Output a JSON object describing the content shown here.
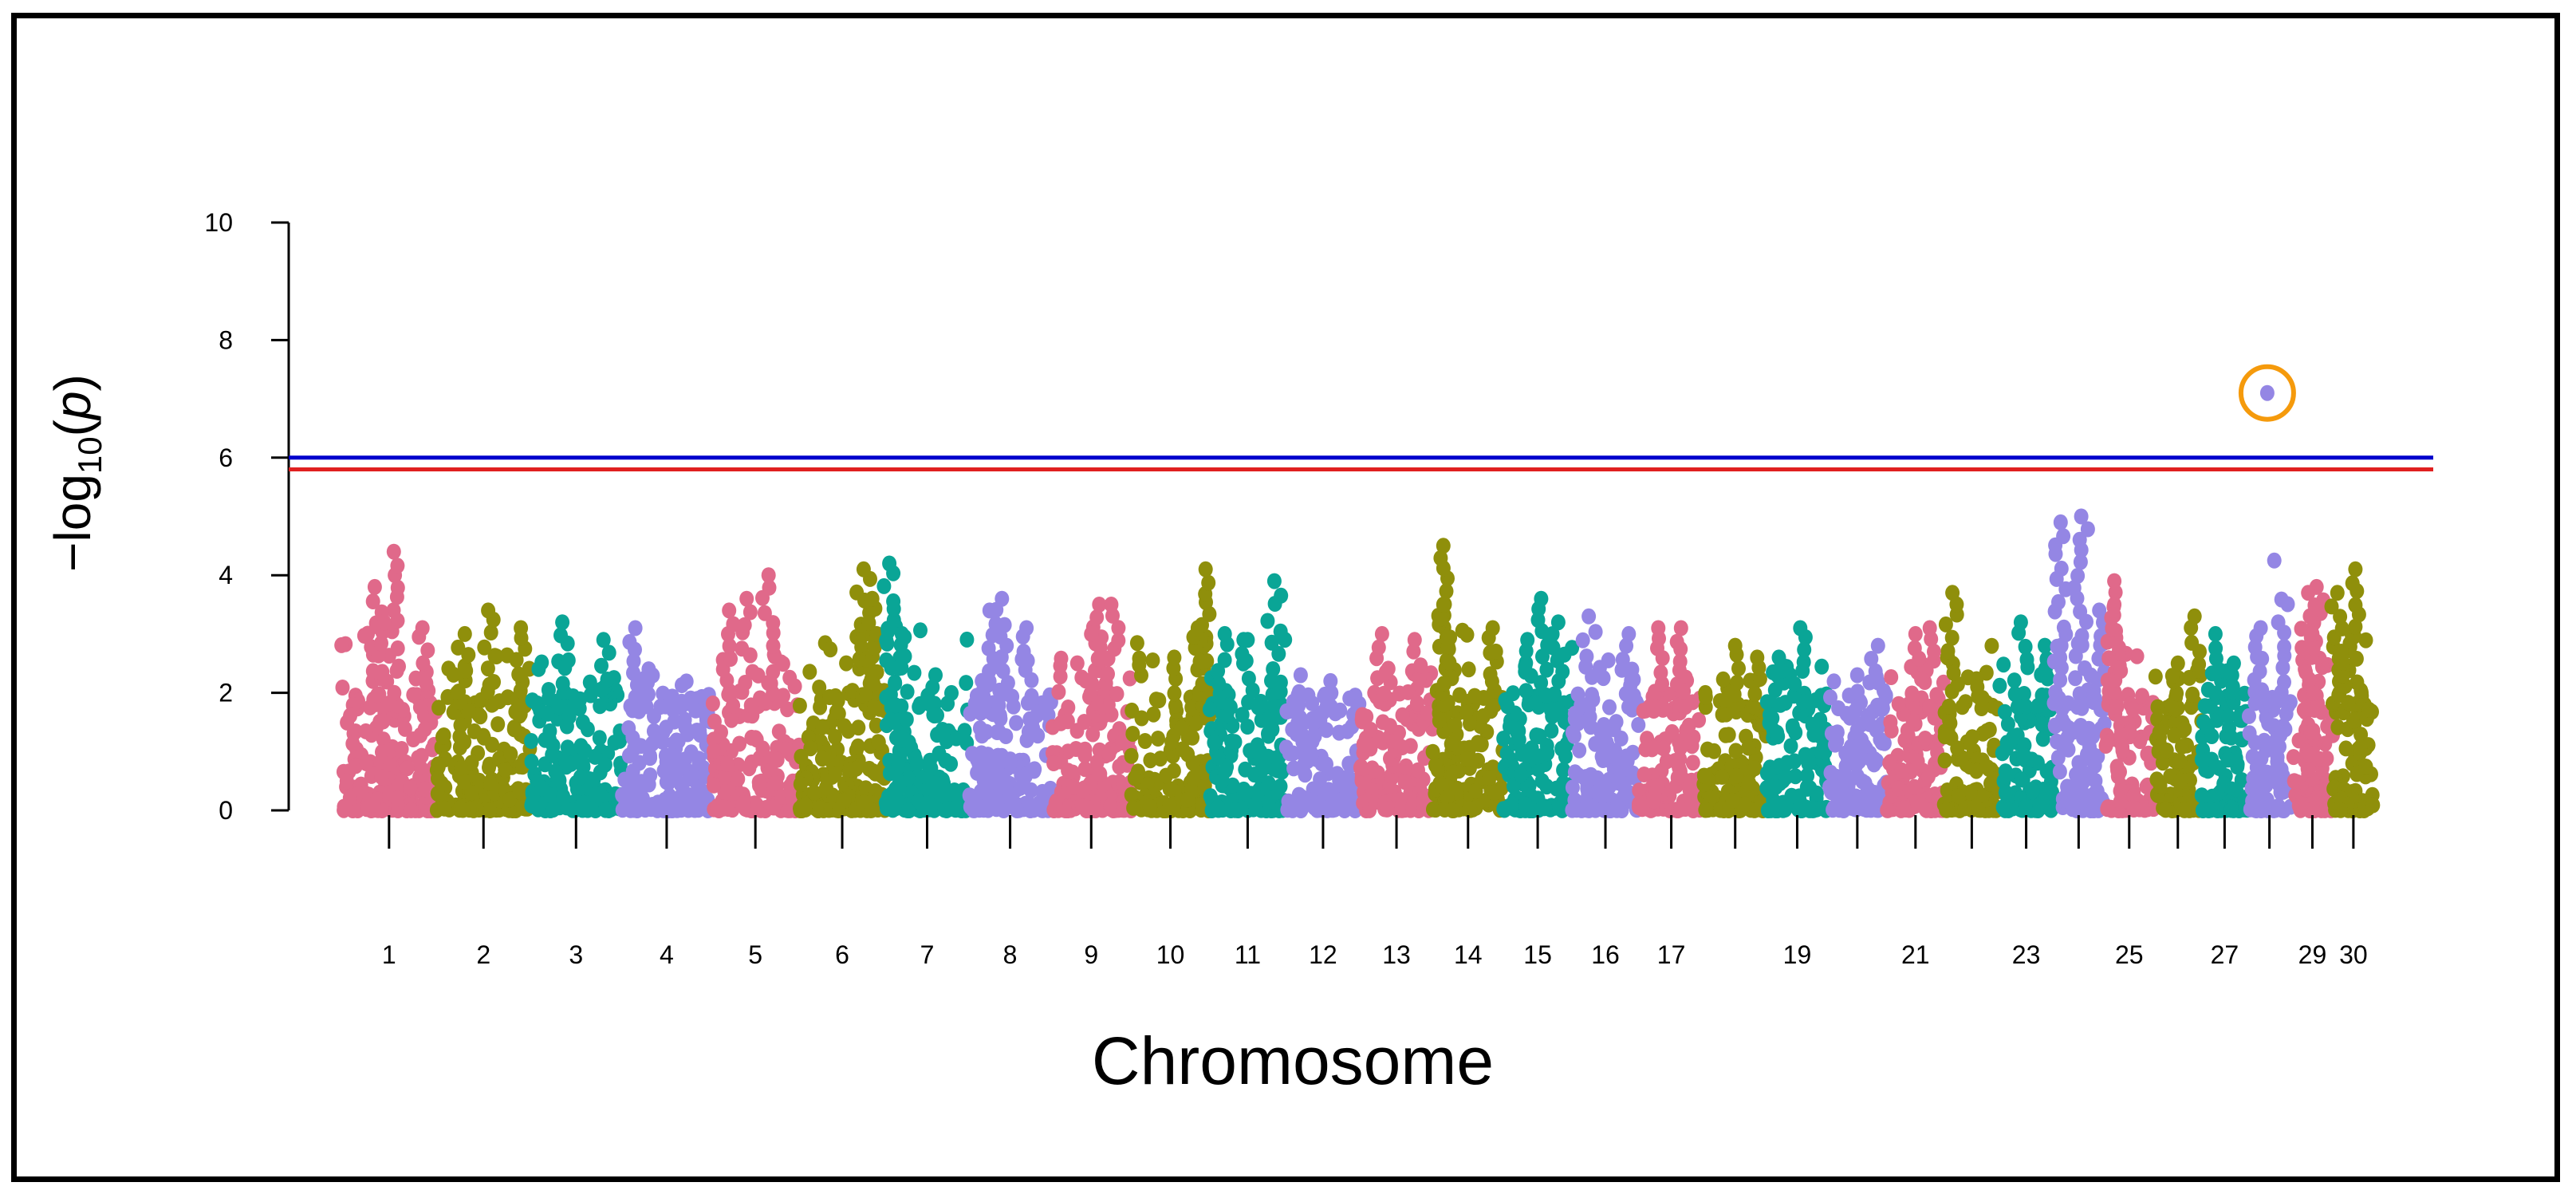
{
  "chart_data": {
    "type": "scatter",
    "subtype": "manhattan",
    "title": "",
    "xlabel": "Chromosome",
    "ylabel": {
      "prefix": "−log",
      "subscript": "10",
      "open": "(",
      "var": "p",
      "close": ")"
    },
    "ylim": [
      0,
      10
    ],
    "yticks": [
      0,
      2,
      4,
      6,
      8,
      10
    ],
    "palette": [
      "#e0698a",
      "#8f8f0b",
      "#0aa596",
      "#9486e4"
    ],
    "thresholds": [
      {
        "name": "genome-wide-significance",
        "value": 6.0,
        "color": "#0000cc"
      },
      {
        "name": "suggestive",
        "value": 5.8,
        "color": "#e02020"
      }
    ],
    "chromosomes": [
      {
        "chr": "1",
        "label": "1",
        "max": 4.4,
        "peaks": [
          [
            0.55,
            4.4
          ],
          [
            0.35,
            3.8
          ],
          [
            0.45,
            3.2
          ],
          [
            0.85,
            3.1
          ]
        ]
      },
      {
        "chr": "2",
        "label": "2",
        "max": 3.4,
        "peaks": [
          [
            0.55,
            3.4
          ],
          [
            0.9,
            3.1
          ],
          [
            0.3,
            3.0
          ]
        ]
      },
      {
        "chr": "3",
        "label": "3",
        "max": 3.2,
        "peaks": [
          [
            0.35,
            3.2
          ],
          [
            0.8,
            2.9
          ]
        ]
      },
      {
        "chr": "4",
        "label": "4",
        "max": 3.1,
        "peaks": [
          [
            0.15,
            3.1
          ],
          [
            0.3,
            2.4
          ]
        ]
      },
      {
        "chr": "5",
        "label": "5",
        "max": 4.0,
        "peaks": [
          [
            0.65,
            4.0
          ],
          [
            0.4,
            3.6
          ],
          [
            0.2,
            3.4
          ]
        ]
      },
      {
        "chr": "6",
        "label": "6",
        "max": 4.1,
        "peaks": [
          [
            0.75,
            4.1
          ],
          [
            0.85,
            3.6
          ],
          [
            0.9,
            3.0
          ]
        ]
      },
      {
        "chr": "7",
        "label": "7",
        "max": 4.2,
        "peaks": [
          [
            0.05,
            4.2
          ],
          [
            0.2,
            3.0
          ],
          [
            0.6,
            2.3
          ]
        ]
      },
      {
        "chr": "8",
        "label": "8",
        "max": 3.6,
        "peaks": [
          [
            0.4,
            3.6
          ],
          [
            0.25,
            3.4
          ],
          [
            0.7,
            3.1
          ]
        ]
      },
      {
        "chr": "9",
        "label": "9",
        "max": 3.5,
        "peaks": [
          [
            0.6,
            3.5
          ],
          [
            0.75,
            3.5
          ],
          [
            0.5,
            3.0
          ]
        ]
      },
      {
        "chr": "10",
        "label": "10",
        "max": 4.1,
        "peaks": [
          [
            0.95,
            4.1
          ],
          [
            0.85,
            3.1
          ],
          [
            0.55,
            2.6
          ]
        ]
      },
      {
        "chr": "11",
        "label": "11",
        "max": 3.9,
        "peaks": [
          [
            0.85,
            3.9
          ],
          [
            0.2,
            3.0
          ],
          [
            0.5,
            2.9
          ]
        ]
      },
      {
        "chr": "12",
        "label": "12",
        "max": 2.3,
        "peaks": [
          [
            0.2,
            2.3
          ],
          [
            0.6,
            2.2
          ]
        ]
      },
      {
        "chr": "13",
        "label": "13",
        "max": 3.0,
        "peaks": [
          [
            0.3,
            3.0
          ],
          [
            0.75,
            2.9
          ]
        ]
      },
      {
        "chr": "14",
        "label": "14",
        "max": 4.5,
        "peaks": [
          [
            0.15,
            4.5
          ],
          [
            0.15,
            3.5
          ],
          [
            0.85,
            3.1
          ]
        ]
      },
      {
        "chr": "15",
        "label": "15",
        "max": 3.6,
        "peaks": [
          [
            0.55,
            3.6
          ],
          [
            0.8,
            3.2
          ],
          [
            0.35,
            2.9
          ]
        ]
      },
      {
        "chr": "16",
        "label": "16",
        "max": 3.3,
        "peaks": [
          [
            0.25,
            3.3
          ],
          [
            0.85,
            3.0
          ]
        ]
      },
      {
        "chr": "17",
        "label": "17",
        "max": 3.1,
        "peaks": [
          [
            0.3,
            3.1
          ],
          [
            0.65,
            3.1
          ]
        ]
      },
      {
        "chr": "18",
        "label": "",
        "max": 2.8,
        "peaks": [
          [
            0.5,
            2.8
          ],
          [
            0.85,
            2.6
          ]
        ]
      },
      {
        "chr": "19",
        "label": "19",
        "max": 3.1,
        "peaks": [
          [
            0.55,
            3.1
          ],
          [
            0.2,
            2.6
          ]
        ]
      },
      {
        "chr": "20",
        "label": "",
        "max": 2.8,
        "peaks": [
          [
            0.85,
            2.8
          ],
          [
            0.5,
            2.3
          ]
        ]
      },
      {
        "chr": "21",
        "label": "21",
        "max": 3.1,
        "peaks": [
          [
            0.75,
            3.1
          ],
          [
            0.5,
            3.0
          ]
        ]
      },
      {
        "chr": "22",
        "label": "",
        "max": 3.7,
        "peaks": [
          [
            0.15,
            3.7
          ],
          [
            0.6,
            2.1
          ]
        ]
      },
      {
        "chr": "23",
        "label": "23",
        "max": 3.2,
        "peaks": [
          [
            0.4,
            3.2
          ],
          [
            0.85,
            2.8
          ]
        ]
      },
      {
        "chr": "24",
        "label": "",
        "max": 5.0,
        "peaks": [
          [
            0.15,
            4.9
          ],
          [
            0.55,
            5.0
          ],
          [
            0.9,
            3.4
          ]
        ]
      },
      {
        "chr": "25",
        "label": "25",
        "max": 3.9,
        "peaks": [
          [
            0.2,
            3.9
          ],
          [
            0.2,
            3.5
          ]
        ]
      },
      {
        "chr": "26",
        "label": "",
        "max": 3.3,
        "peaks": [
          [
            0.85,
            3.3
          ],
          [
            0.5,
            2.5
          ]
        ]
      },
      {
        "chr": "27",
        "label": "27",
        "max": 3.0,
        "peaks": [
          [
            0.3,
            3.0
          ],
          [
            0.7,
            2.5
          ]
        ]
      },
      {
        "chr": "28",
        "label": "",
        "max": 7.1,
        "peaks": [
          [
            0.45,
            7.1
          ],
          [
            0.3,
            3.1
          ],
          [
            0.7,
            3.2
          ]
        ]
      },
      {
        "chr": "29",
        "label": "29",
        "max": 3.8,
        "peaks": [
          [
            0.6,
            3.8
          ],
          [
            0.4,
            3.7
          ],
          [
            0.5,
            3.0
          ]
        ]
      },
      {
        "chr": "30",
        "label": "30",
        "max": 4.1,
        "peaks": [
          [
            0.55,
            4.1
          ],
          [
            0.1,
            3.7
          ],
          [
            0.2,
            2.7
          ]
        ]
      }
    ],
    "highlight": {
      "chr": "28",
      "value": 7.1,
      "color": "#f59a0c"
    }
  }
}
